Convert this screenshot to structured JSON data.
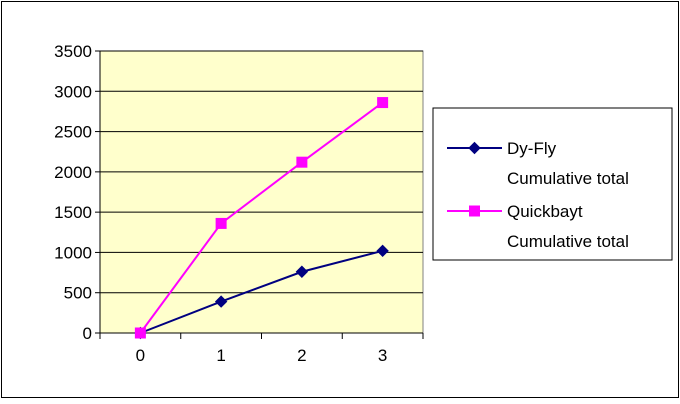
{
  "chart_data": {
    "type": "line",
    "x": [
      0,
      1,
      2,
      3
    ],
    "xlabel": "",
    "ylabel": "",
    "ylim": [
      0,
      3500
    ],
    "yticks": [
      0,
      500,
      1000,
      1500,
      2000,
      2500,
      3000,
      3500
    ],
    "grid": true,
    "plot_background": "#ffffcc",
    "legend_position": "right",
    "series": [
      {
        "name_lines": [
          "Dy-Fly",
          "Cumulative total"
        ],
        "values": [
          0,
          390,
          760,
          1020
        ],
        "color": "#000080",
        "marker": "diamond"
      },
      {
        "name_lines": [
          "Quickbayt",
          "Cumulative total"
        ],
        "values": [
          0,
          1360,
          2120,
          2860
        ],
        "color": "#ff00ff",
        "marker": "square"
      }
    ]
  }
}
